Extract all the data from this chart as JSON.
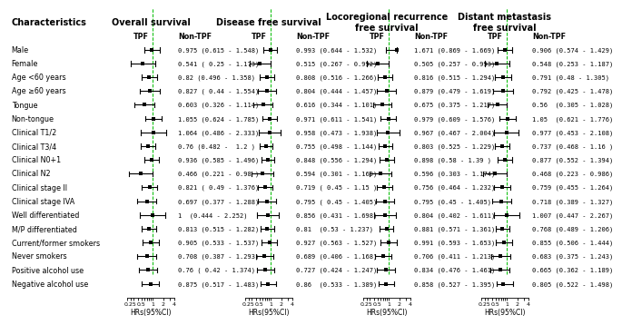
{
  "characteristics": [
    "Male",
    "Female",
    "Age <60 years",
    "Age ≥60 years",
    "Tongue",
    "Non-tongue",
    "Clinical T1/2",
    "Clinical T3/4",
    "Clinical N0+1",
    "Clinical N2",
    "Clinical stage II",
    "Clinical stage IVA",
    "Well differentiated",
    "M/P differentiated",
    "Current/former smokers",
    "Never smokers",
    "Positive alcohol use",
    "Negative alcohol use"
  ],
  "columns": [
    {
      "title": "Overall survival",
      "data": [
        {
          "hr": 0.975,
          "lo": 0.615,
          "hi": 1.548,
          "label": "0.975 (0.615 - 1.548)"
        },
        {
          "hr": 0.541,
          "lo": 0.25,
          "hi": 1.173,
          "label": "0.541 ( 0.25 - 1.173)"
        },
        {
          "hr": 0.82,
          "lo": 0.496,
          "hi": 1.358,
          "label": "0.82 (0.496 - 1.358)"
        },
        {
          "hr": 0.827,
          "lo": 0.44,
          "hi": 1.554,
          "label": "0.827 ( 0.44 - 1.554)"
        },
        {
          "hr": 0.603,
          "lo": 0.326,
          "hi": 1.114,
          "label": "0.603 (0.326 - 1.114)"
        },
        {
          "hr": 1.055,
          "lo": 0.624,
          "hi": 1.785,
          "label": "1.055 (0.624 - 1.785)"
        },
        {
          "hr": 1.064,
          "lo": 0.486,
          "hi": 2.333,
          "label": "1.064 (0.486 - 2.333)"
        },
        {
          "hr": 0.76,
          "lo": 0.482,
          "hi": 1.2,
          "label": "0.76 (0.482 -  1.2 )"
        },
        {
          "hr": 0.936,
          "lo": 0.585,
          "hi": 1.496,
          "label": "0.936 (0.585 - 1.496)"
        },
        {
          "hr": 0.466,
          "lo": 0.221,
          "hi": 0.98,
          "label": "0.466 (0.221 - 0.98 )"
        },
        {
          "hr": 0.821,
          "lo": 0.49,
          "hi": 1.376,
          "label": "0.821 ( 0.49 - 1.376)"
        },
        {
          "hr": 0.697,
          "lo": 0.377,
          "hi": 1.288,
          "label": "0.697 (0.377 - 1.288)"
        },
        {
          "hr": 1.0,
          "lo": 0.444,
          "hi": 2.252,
          "label": "1  (0.444 - 2.252)"
        },
        {
          "hr": 0.813,
          "lo": 0.515,
          "hi": 1.282,
          "label": "0.813 (0.515 - 1.282)"
        },
        {
          "hr": 0.905,
          "lo": 0.533,
          "hi": 1.537,
          "label": "0.905 (0.533 - 1.537)"
        },
        {
          "hr": 0.708,
          "lo": 0.387,
          "hi": 1.293,
          "label": "0.708 (0.387 - 1.293)"
        },
        {
          "hr": 0.76,
          "lo": 0.42,
          "hi": 1.374,
          "label": "0.76 ( 0.42 - 1.374)"
        },
        {
          "hr": 0.875,
          "lo": 0.517,
          "hi": 1.483,
          "label": "0.875 (0.517 - 1.483)"
        }
      ]
    },
    {
      "title": "Disease free survival",
      "data": [
        {
          "hr": 0.993,
          "lo": 0.644,
          "hi": 1.532,
          "label": "0.993 (0.644 - 1.532)"
        },
        {
          "hr": 0.515,
          "lo": 0.267,
          "hi": 0.992,
          "label": "0.515 (0.267 - 0.992)"
        },
        {
          "hr": 0.808,
          "lo": 0.516,
          "hi": 1.266,
          "label": "0.808 (0.516 - 1.266)"
        },
        {
          "hr": 0.804,
          "lo": 0.444,
          "hi": 1.457,
          "label": "0.804 (0.444 - 1.457)"
        },
        {
          "hr": 0.616,
          "lo": 0.344,
          "hi": 1.101,
          "label": "0.616 (0.344 - 1.101)"
        },
        {
          "hr": 0.971,
          "lo": 0.611,
          "hi": 1.541,
          "label": "0.971 (0.611 - 1.541)"
        },
        {
          "hr": 0.958,
          "lo": 0.473,
          "hi": 1.938,
          "label": "0.958 (0.473 - 1.938)"
        },
        {
          "hr": 0.755,
          "lo": 0.498,
          "hi": 1.144,
          "label": "0.755 (0.498 - 1.144)"
        },
        {
          "hr": 0.848,
          "lo": 0.556,
          "hi": 1.294,
          "label": "0.848 (0.556 - 1.294)"
        },
        {
          "hr": 0.594,
          "lo": 0.301,
          "hi": 1.169,
          "label": "0.594 (0.301 - 1.169)"
        },
        {
          "hr": 0.719,
          "lo": 0.45,
          "hi": 1.15,
          "label": "0.719 ( 0.45 - 1.15 )"
        },
        {
          "hr": 0.795,
          "lo": 0.45,
          "hi": 1.405,
          "label": "0.795 ( 0.45 - 1.405)"
        },
        {
          "hr": 0.856,
          "lo": 0.431,
          "hi": 1.698,
          "label": "0.856 (0.431 - 1.698)"
        },
        {
          "hr": 0.81,
          "lo": 0.53,
          "hi": 1.237,
          "label": "0.81  (0.53 - 1.237)"
        },
        {
          "hr": 0.927,
          "lo": 0.563,
          "hi": 1.527,
          "label": "0.927 (0.563 - 1.527)"
        },
        {
          "hr": 0.689,
          "lo": 0.406,
          "hi": 1.168,
          "label": "0.689 (0.406 - 1.168)"
        },
        {
          "hr": 0.727,
          "lo": 0.424,
          "hi": 1.247,
          "label": "0.727 (0.424 - 1.247)"
        },
        {
          "hr": 0.86,
          "lo": 0.533,
          "hi": 1.389,
          "label": "0.86  (0.533 - 1.389)"
        }
      ]
    },
    {
      "title": "Locoregional recurrence\nfree survival",
      "data": [
        {
          "hr": 1.671,
          "lo": 0.869,
          "hi": 1.669,
          "label": "1.671 (0.869 - 1.669)"
        },
        {
          "hr": 0.505,
          "lo": 0.257,
          "hi": 0.993,
          "label": "0.505 (0.257 - 0.993)"
        },
        {
          "hr": 0.816,
          "lo": 0.515,
          "hi": 1.294,
          "label": "0.816 (0.515 - 1.294)"
        },
        {
          "hr": 0.879,
          "lo": 0.479,
          "hi": 1.619,
          "label": "0.879 (0.479 - 1.619)"
        },
        {
          "hr": 0.675,
          "lo": 0.375,
          "hi": 1.217,
          "label": "0.675 (0.375 - 1.217)"
        },
        {
          "hr": 0.979,
          "lo": 0.609,
          "hi": 1.576,
          "label": "0.979 (0.609 - 1.576)"
        },
        {
          "hr": 0.967,
          "lo": 0.467,
          "hi": 2.004,
          "label": "0.967 (0.467 - 2.004)"
        },
        {
          "hr": 0.803,
          "lo": 0.525,
          "hi": 1.229,
          "label": "0.803 (0.525 - 1.229)"
        },
        {
          "hr": 0.898,
          "lo": 0.58,
          "hi": 1.39,
          "label": "0.898 (0.58 - 1.39 )"
        },
        {
          "hr": 0.596,
          "lo": 0.303,
          "hi": 1.174,
          "label": "0.596 (0.303 - 1.174)"
        },
        {
          "hr": 0.756,
          "lo": 0.464,
          "hi": 1.232,
          "label": "0.756 (0.464 - 1.232)"
        },
        {
          "hr": 0.795,
          "lo": 0.45,
          "hi": 1.405,
          "label": "0.795 (0.45 - 1.405)"
        },
        {
          "hr": 0.804,
          "lo": 0.402,
          "hi": 1.611,
          "label": "0.804 (0.402 - 1.611)"
        },
        {
          "hr": 0.881,
          "lo": 0.571,
          "hi": 1.361,
          "label": "0.881 (0.571 - 1.361)"
        },
        {
          "hr": 0.991,
          "lo": 0.593,
          "hi": 1.653,
          "label": "0.991 (0.593 - 1.653)"
        },
        {
          "hr": 0.706,
          "lo": 0.411,
          "hi": 1.213,
          "label": "0.706 (0.411 - 1.213)"
        },
        {
          "hr": 0.834,
          "lo": 0.476,
          "hi": 1.461,
          "label": "0.834 (0.476 - 1.461)"
        },
        {
          "hr": 0.858,
          "lo": 0.527,
          "hi": 1.395,
          "label": "0.858 (0.527 - 1.395)"
        }
      ]
    },
    {
      "title": "Distant metastasis\nfree survival",
      "data": [
        {
          "hr": 0.906,
          "lo": 0.574,
          "hi": 1.429,
          "label": "0.906 (0.574 - 1.429)"
        },
        {
          "hr": 0.548,
          "lo": 0.253,
          "hi": 1.187,
          "label": "0.548 (0.253 - 1.187)"
        },
        {
          "hr": 0.791,
          "lo": 0.48,
          "hi": 1.305,
          "label": "0.791 (0.48 - 1.305)"
        },
        {
          "hr": 0.792,
          "lo": 0.425,
          "hi": 1.478,
          "label": "0.792 (0.425 - 1.478)"
        },
        {
          "hr": 0.56,
          "lo": 0.305,
          "hi": 1.028,
          "label": "0.56  (0.305 - 1.028)"
        },
        {
          "hr": 1.05,
          "lo": 0.621,
          "hi": 1.776,
          "label": "1.05  (0.621 - 1.776)"
        },
        {
          "hr": 0.977,
          "lo": 0.453,
          "hi": 2.108,
          "label": "0.977 (0.453 - 2.108)"
        },
        {
          "hr": 0.737,
          "lo": 0.468,
          "hi": 1.16,
          "label": "0.737 (0.468 - 1.16 )"
        },
        {
          "hr": 0.877,
          "lo": 0.552,
          "hi": 1.394,
          "label": "0.877 (0.552 - 1.394)"
        },
        {
          "hr": 0.468,
          "lo": 0.223,
          "hi": 0.986,
          "label": "0.468 (0.223 - 0.986)"
        },
        {
          "hr": 0.759,
          "lo": 0.455,
          "hi": 1.264,
          "label": "0.759 (0.455 - 1.264)"
        },
        {
          "hr": 0.718,
          "lo": 0.389,
          "hi": 1.327,
          "label": "0.718 (0.389 - 1.327)"
        },
        {
          "hr": 1.007,
          "lo": 0.447,
          "hi": 2.267,
          "label": "1.007 (0.447 - 2.267)"
        },
        {
          "hr": 0.768,
          "lo": 0.489,
          "hi": 1.206,
          "label": "0.768 (0.489 - 1.206)"
        },
        {
          "hr": 0.855,
          "lo": 0.506,
          "hi": 1.444,
          "label": "0.855 (0.506 - 1.444)"
        },
        {
          "hr": 0.683,
          "lo": 0.375,
          "hi": 1.243,
          "label": "0.683 (0.375 - 1.243)"
        },
        {
          "hr": 0.665,
          "lo": 0.362,
          "hi": 1.189,
          "label": "0.665 (0.362 - 1.189)"
        },
        {
          "hr": 0.805,
          "lo": 0.522,
          "hi": 1.498,
          "label": "0.805 (0.522 - 1.498)"
        }
      ]
    }
  ],
  "xmin": 0.2,
  "xmax": 4.0,
  "xticks": [
    0.25,
    0.5,
    1.0,
    2.0,
    4.0
  ],
  "xtick_labels": [
    "0.25",
    "0.5",
    "1",
    "2",
    "4"
  ],
  "background_color": "#ffffff",
  "line_color": "#000000",
  "dashed_line_color": "#00bb00",
  "marker_color": "#000000",
  "text_color": "#000000",
  "fontsize_title": 7.0,
  "fontsize_sub": 5.8,
  "fontsize_chars": 5.8,
  "fontsize_values": 5.0,
  "fontsize_xlabel": 5.5,
  "fontsize_xticks": 4.5
}
